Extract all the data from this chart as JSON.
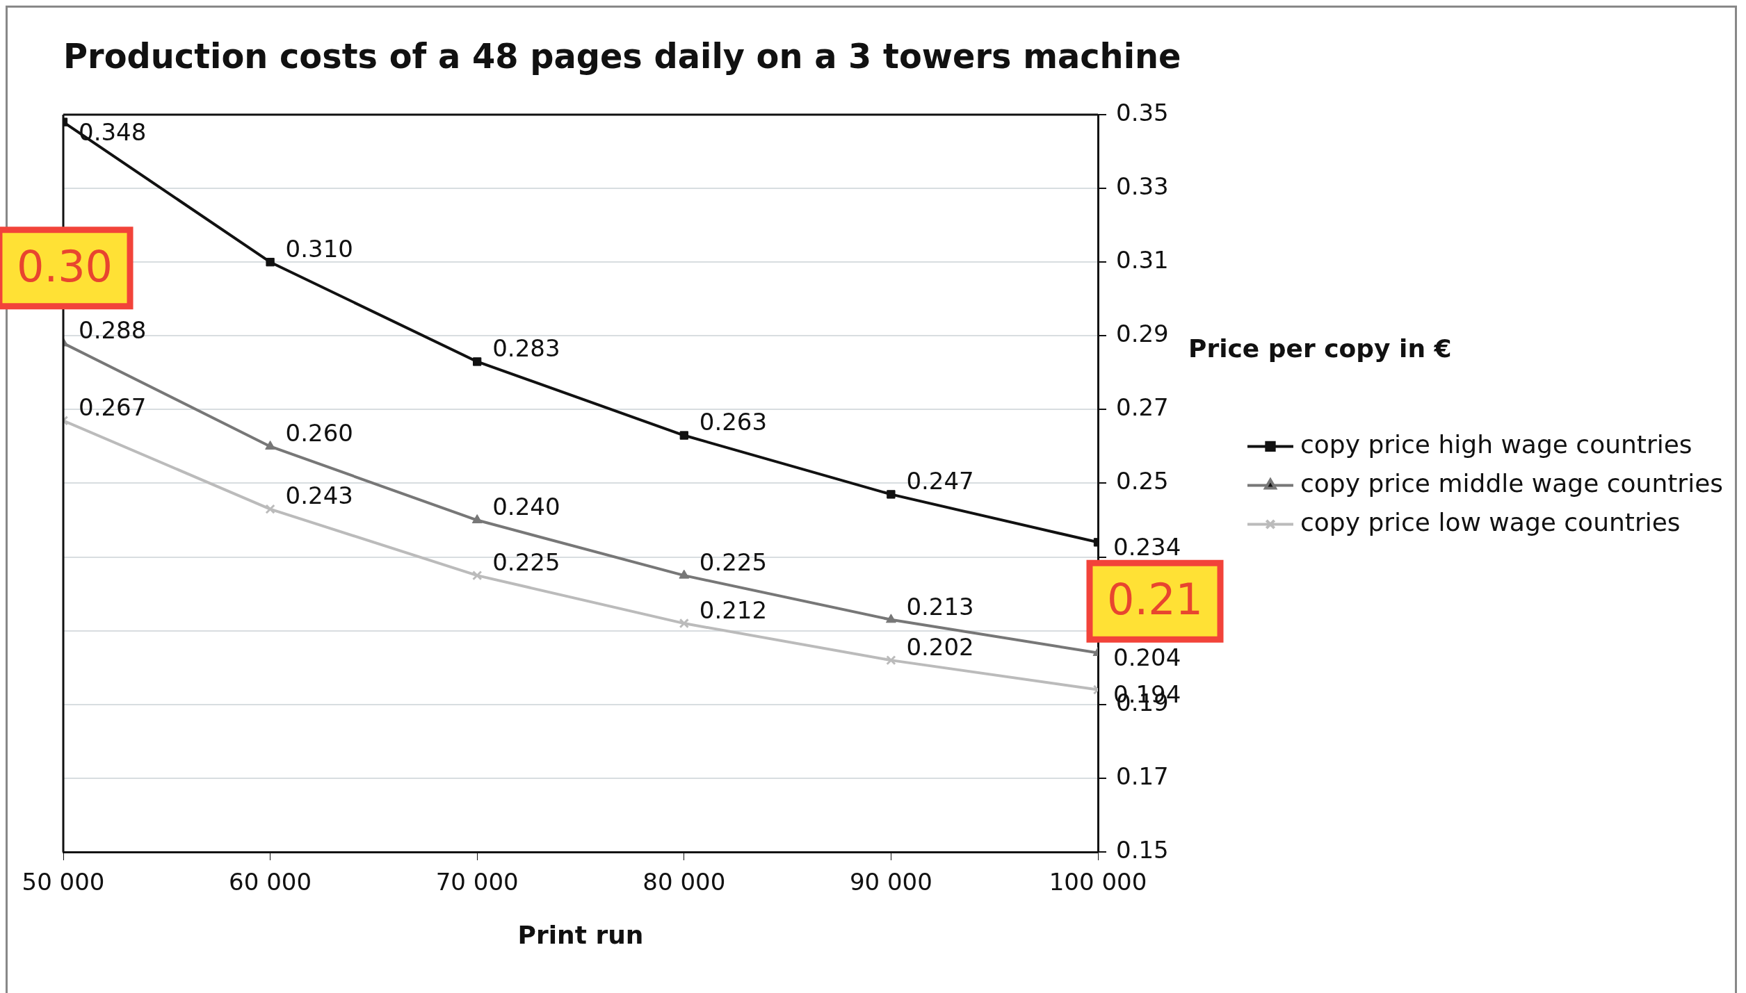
{
  "chart_data": {
    "type": "line",
    "title": "Production costs of a 48 pages daily on a 3 towers machine",
    "xlabel": "Print run",
    "ylabel": "Price per copy in €",
    "x": [
      50000,
      60000,
      70000,
      80000,
      90000,
      100000
    ],
    "series": [
      {
        "name": "copy price high wage countries",
        "color": "#111111",
        "marker": "square",
        "values": [
          0.348,
          0.31,
          0.283,
          0.263,
          0.247,
          0.234
        ],
        "value_labels": [
          "0.348",
          "0.310",
          "0.283",
          "0.263",
          "0.247",
          "0.234"
        ]
      },
      {
        "name": "copy price middle wage countries",
        "color": "#777777",
        "marker": "triangle",
        "values": [
          0.288,
          0.26,
          0.24,
          0.225,
          0.213,
          0.204
        ],
        "value_labels": [
          "0.288",
          "0.260",
          "0.240",
          "0.225",
          "0.213",
          "0.204"
        ]
      },
      {
        "name": "copy price low wage countries",
        "color": "#bbbbbb",
        "marker": "cross",
        "values": [
          0.267,
          0.243,
          0.225,
          0.212,
          0.202,
          0.194
        ],
        "value_labels": [
          "0.267",
          "0.243",
          "0.225",
          "0.212",
          "0.202",
          "0.194"
        ]
      }
    ],
    "xlim": [
      50000,
      100000
    ],
    "xticks": [
      {
        "value": 50000,
        "label": "50 000"
      },
      {
        "value": 60000,
        "label": "60 000"
      },
      {
        "value": 70000,
        "label": "70 000"
      },
      {
        "value": 80000,
        "label": "80 000"
      },
      {
        "value": 90000,
        "label": "90 000"
      },
      {
        "value": 100000,
        "label": "100 000"
      }
    ],
    "ylim": [
      0.15,
      0.35
    ],
    "yticks": [
      0.15,
      0.17,
      0.19,
      {
        "value": 0.21,
        "label": null
      },
      {
        "value": 0.23,
        "label": null
      },
      0.25,
      0.27,
      0.29,
      0.31,
      0.33,
      0.35
    ],
    "grid": "y",
    "legend": "right",
    "annotations": [
      "0.30",
      "0.21"
    ]
  }
}
